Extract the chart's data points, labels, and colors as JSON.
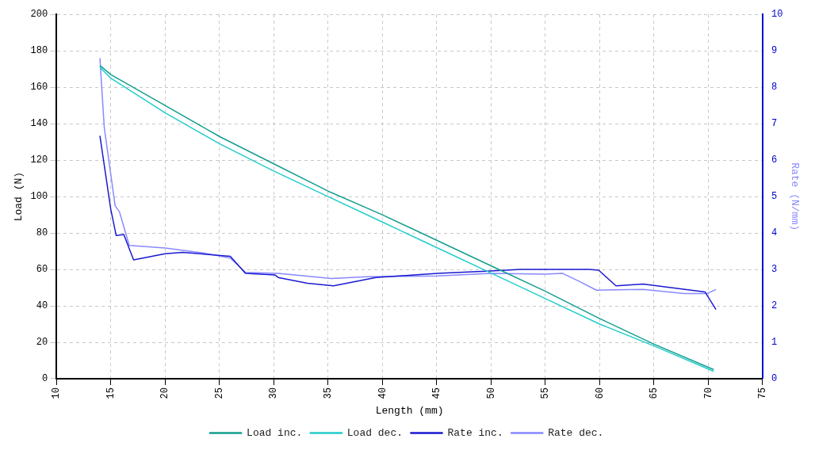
{
  "chart_data": {
    "type": "line",
    "xlabel": "Length (mm)",
    "ylabel": "Load (N)",
    "y2label": "Rate (N/mm)",
    "xlim": [
      10,
      75
    ],
    "xticks": [
      10,
      15,
      20,
      25,
      30,
      35,
      40,
      45,
      50,
      55,
      60,
      65,
      70,
      75
    ],
    "ylim": [
      0,
      200
    ],
    "yticks": [
      0,
      20,
      40,
      60,
      80,
      100,
      120,
      140,
      160,
      180,
      200
    ],
    "y2lim": [
      0,
      10
    ],
    "y2ticks": [
      0,
      1,
      2,
      3,
      4,
      5,
      6,
      7,
      8,
      9,
      10
    ],
    "grid": true,
    "legend": "bottom",
    "marker": "none",
    "line_style": "solid",
    "series": [
      {
        "name": "Load inc.",
        "color": "#139e8e",
        "x": [
          14,
          15,
          20,
          25,
          30,
          35,
          40,
          45,
          50,
          55,
          60,
          65,
          70.5
        ],
        "values": [
          172,
          167,
          150,
          133,
          118,
          103,
          90,
          76,
          62,
          48,
          33,
          19,
          5
        ]
      },
      {
        "name": "Load dec.",
        "color": "#22cccc",
        "x": [
          14,
          15,
          20,
          25,
          30,
          35,
          40,
          45,
          50,
          55,
          60,
          65,
          70.5
        ],
        "values": [
          171,
          165,
          146,
          129,
          114,
          100,
          86,
          72,
          58,
          44,
          30,
          18,
          4
        ]
      },
      {
        "name": "Rate inc.",
        "color": "#1a1ad0",
        "axis": "y2",
        "x": [
          14,
          15,
          15.5,
          16.2,
          17.1,
          20,
          21.6,
          26,
          27.4,
          30.1,
          30.4,
          33.1,
          35.5,
          39.4,
          45.1,
          50,
          52.7,
          59,
          59.9,
          61.5,
          64,
          69.7,
          70.7
        ],
        "values": [
          6.67,
          4.65,
          3.93,
          3.96,
          3.26,
          3.43,
          3.47,
          3.36,
          2.89,
          2.85,
          2.78,
          2.62,
          2.55,
          2.78,
          2.89,
          2.96,
          3.0,
          3.0,
          2.98,
          2.55,
          2.6,
          2.38,
          1.9
        ]
      },
      {
        "name": "Rate dec.",
        "color": "#8888ff",
        "axis": "y2",
        "x": [
          14,
          14.4,
          15.4,
          15.8,
          16.7,
          20,
          23.6,
          26,
          27.4,
          30.1,
          30.4,
          35.3,
          38.6,
          45.1,
          50,
          54.9,
          56.6,
          58.2,
          59.7,
          64,
          67.8,
          69.9,
          70.7
        ],
        "values": [
          8.8,
          6.9,
          4.75,
          4.58,
          3.66,
          3.59,
          3.45,
          3.31,
          2.92,
          2.89,
          2.89,
          2.75,
          2.8,
          2.82,
          2.89,
          2.87,
          2.89,
          2.66,
          2.43,
          2.45,
          2.34,
          2.34,
          2.45
        ]
      }
    ]
  }
}
